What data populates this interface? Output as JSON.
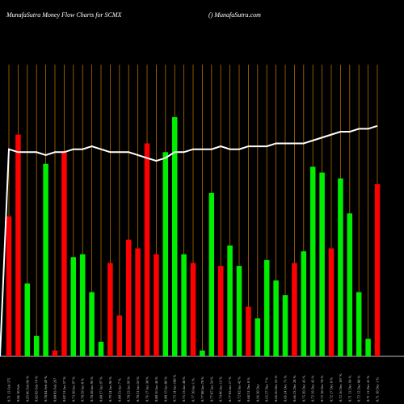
{
  "header": {
    "title": "MunafaSutra  Money Flow  Charts for SCMX",
    "site": "() MunafaSutra.com"
  },
  "chart_data": {
    "type": "bar",
    "colors": {
      "up": "#00ee00",
      "down": "#ff0000",
      "line": "#ffffff",
      "grid": "#b36b00",
      "background": "#000000"
    },
    "ylim": [
      0,
      100
    ],
    "categories": [
      "0.71 12 Feb 375",
      "0.86 10 Feb",
      "0.85 06 Feb 86 %",
      "0.82 05 Feb 74 %",
      "0.78 04 Feb 49 %",
      "0.80 03 Feb 267",
      "0.82 31 Jan 57 %",
      "0.73 30 Jan 97 %",
      "0.78 29 Jan 8 %",
      "0.78 28 Jan 96 %",
      "0.80 27 Jan 97 %",
      "0.79 24 Jan 96 %",
      "0.80 23 Jan 7 %",
      "0.78 22 Jan 99 %",
      "0.78 21 Jan 53 %",
      "0.76 17 Jan 38 %",
      "0.80 16 Jan 46 %",
      "0.80 15 Jan 86 %",
      "0.75 14 Jan 108 %",
      "0.75 13 Jan 48 %",
      "0.77 10 Jan 1 %",
      "0.77 08 Jan 78 %",
      "0.77 07 Jan 54 %",
      "0.74 06 Jan 13 %",
      "0.77 03 Jan 17 %",
      "0.72 02 Jan 42 %",
      "0.68 31 Dec 8 %",
      "0.66 30 Dec",
      "0.65 27 Dec 7 %",
      "0.66 26 Dec 55 %",
      "0.66 24 Dec 71 %",
      "0.66 23 Dec 28 %",
      "0.75 20 Dec 45 %",
      "0.72 19 Dec 42 %",
      "0.72 18 Dec 78 %",
      "0.72 17 Dec 8 %",
      "0.72 16 Dec 107 %",
      "0.71 13 Dec 94 %",
      "0.72 12 Dec 88 %",
      "0.71 11 Dec 41 %",
      "0.71 10 Dec 1 %"
    ],
    "values": [
      48,
      76,
      25,
      7,
      66,
      2,
      70,
      34,
      35,
      22,
      5,
      32,
      14,
      40,
      37,
      73,
      35,
      70,
      82,
      35,
      32,
      2,
      56,
      31,
      38,
      31,
      17,
      13,
      33,
      26,
      21,
      32,
      36,
      65,
      63,
      37,
      61,
      49,
      22,
      6,
      59
    ],
    "direction": [
      "down",
      "down",
      "up",
      "up",
      "up",
      "down",
      "down",
      "up",
      "up",
      "up",
      "up",
      "down",
      "down",
      "down",
      "down",
      "down",
      "down",
      "up",
      "up",
      "up",
      "down",
      "up",
      "up",
      "down",
      "up",
      "up",
      "down",
      "up",
      "up",
      "up",
      "up",
      "down",
      "up",
      "up",
      "up",
      "down",
      "up",
      "up",
      "up",
      "up",
      "down"
    ],
    "line": [
      71,
      70,
      70,
      70,
      69,
      70,
      70,
      71,
      71,
      72,
      71,
      70,
      70,
      70,
      69,
      68,
      67,
      68,
      70,
      70,
      71,
      71,
      71,
      72,
      71,
      71,
      72,
      72,
      72,
      73,
      73,
      73,
      73,
      74,
      75,
      76,
      77,
      77,
      78,
      78,
      79
    ]
  }
}
